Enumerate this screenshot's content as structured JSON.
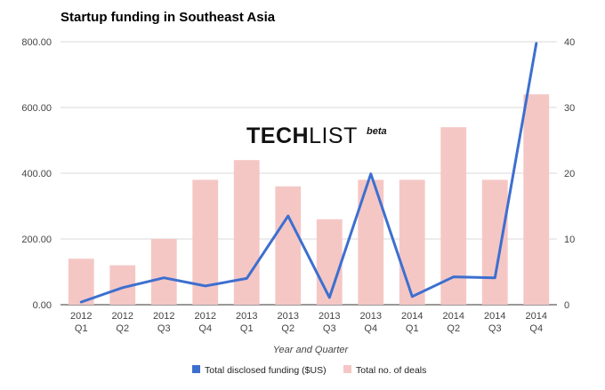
{
  "chart_data": {
    "type": "bar",
    "title": "Startup funding in Southeast Asia",
    "xlabel": "Year and Quarter",
    "ylabel_left": "",
    "ylabel_right": "",
    "categories": [
      [
        "2012",
        "Q1"
      ],
      [
        "2012",
        "Q2"
      ],
      [
        "2012",
        "Q3"
      ],
      [
        "2012",
        "Q4"
      ],
      [
        "2013",
        "Q1"
      ],
      [
        "2013",
        "Q2"
      ],
      [
        "2013",
        "Q3"
      ],
      [
        "2013",
        "Q4"
      ],
      [
        "2014",
        "Q1"
      ],
      [
        "2014",
        "Q2"
      ],
      [
        "2014",
        "Q3"
      ],
      [
        "2014",
        "Q4"
      ]
    ],
    "left_axis": {
      "ylim": [
        0,
        800
      ],
      "ticks": [
        "0.00",
        "200.00",
        "400.00",
        "600.00",
        "800.00"
      ]
    },
    "right_axis": {
      "ylim": [
        0,
        40
      ],
      "ticks": [
        "0",
        "10",
        "20",
        "30",
        "40"
      ]
    },
    "grid": true,
    "legend_position": "bottom",
    "series": [
      {
        "name": "Total disclosed funding ($US)",
        "type": "line",
        "axis": "left",
        "color": "#3d6fcf",
        "values": [
          8,
          52,
          82,
          57,
          80,
          270,
          22,
          398,
          25,
          85,
          82,
          795
        ]
      },
      {
        "name": "Total no. of deals",
        "type": "bar",
        "axis": "right",
        "color": "#f4c7c5",
        "values": [
          7,
          6,
          10,
          19,
          22,
          18,
          13,
          19,
          19,
          27,
          19,
          32
        ]
      }
    ],
    "watermark": {
      "brand_bold": "TECH",
      "brand_light": "LIST",
      "tag": "beta"
    }
  }
}
